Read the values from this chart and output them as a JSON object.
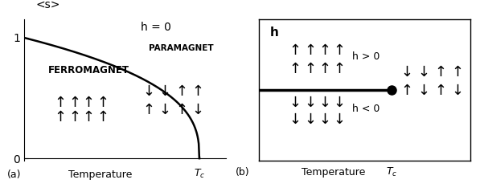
{
  "fig_width": 5.97,
  "fig_height": 2.44,
  "dpi": 100,
  "background_color": "#f0f0f0",
  "panel_a": {
    "title": "h = 0",
    "ylabel": "<s>",
    "xlabel": "Temperature",
    "tc_label": "T_c",
    "panel_label": "(a)",
    "ferromagnet_label": "FERROMAGNET",
    "paramagnet_label": "PARAMAGNET",
    "yticks": [
      0,
      1
    ],
    "curve_color": "#000000"
  },
  "panel_b": {
    "title": "h",
    "xlabel": "Temperature",
    "tc_label": "T_c",
    "panel_label": "(b)",
    "h_pos_label": "h > 0",
    "h_neg_label": "h < 0",
    "line_color": "#000000",
    "dot_color": "#000000",
    "dot_size": 80
  }
}
